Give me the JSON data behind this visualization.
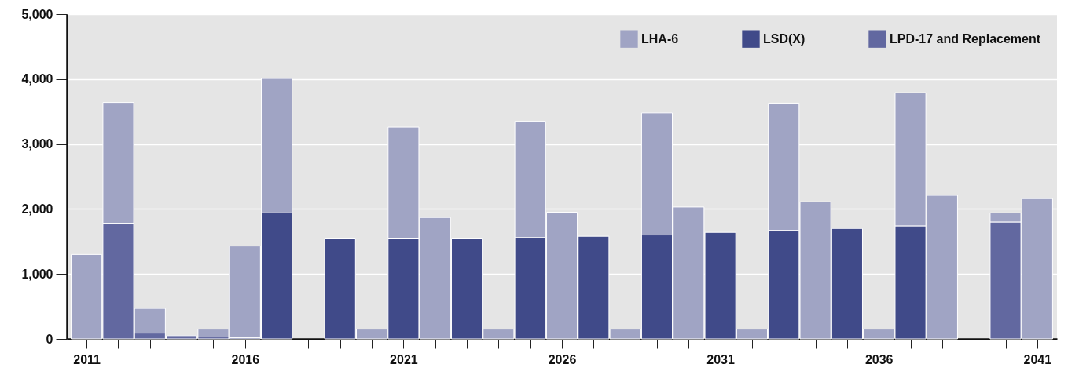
{
  "chart_data": {
    "type": "bar",
    "stacked": true,
    "x": [
      2011,
      2012,
      2013,
      2014,
      2015,
      2016,
      2017,
      2019,
      2020,
      2021,
      2022,
      2023,
      2024,
      2025,
      2026,
      2027,
      2028,
      2029,
      2030,
      2031,
      2032,
      2033,
      2034,
      2035,
      2036,
      2037,
      2038,
      2040,
      2041
    ],
    "series": [
      {
        "name": "LPD-17 and Replacement",
        "color": "#6268a0",
        "values": [
          null,
          1780,
          90,
          50,
          30,
          20,
          null,
          null,
          null,
          null,
          null,
          null,
          null,
          null,
          null,
          null,
          null,
          null,
          null,
          null,
          null,
          null,
          null,
          null,
          null,
          null,
          null,
          1800,
          null
        ]
      },
      {
        "name": "LSD(X)",
        "color": "#404a89",
        "values": [
          null,
          null,
          null,
          null,
          null,
          null,
          1940,
          1540,
          null,
          1540,
          null,
          1540,
          null,
          1560,
          null,
          1580,
          null,
          1600,
          null,
          1640,
          null,
          1670,
          null,
          1700,
          null,
          1740,
          null,
          null,
          null
        ]
      },
      {
        "name": "LHA-6",
        "color": "#a0a4c4",
        "values": [
          1300,
          1860,
          380,
          null,
          120,
          1410,
          2070,
          null,
          150,
          1720,
          1870,
          null,
          150,
          1790,
          1950,
          null,
          150,
          1880,
          2030,
          null,
          150,
          1960,
          2110,
          null,
          150,
          2050,
          2210,
          140,
          2160
        ]
      }
    ],
    "xlim": [
      2010.5,
      2041.5
    ],
    "xticks": [
      2011,
      {
        "value": 2012,
        "label": null
      },
      {
        "value": 2013,
        "label": null
      },
      {
        "value": 2014,
        "label": null
      },
      {
        "value": 2015,
        "label": null
      },
      2016,
      {
        "value": 2017,
        "label": null
      },
      {
        "value": 2018,
        "label": null
      },
      {
        "value": 2019,
        "label": null
      },
      {
        "value": 2020,
        "label": null
      },
      2021,
      {
        "value": 2022,
        "label": null
      },
      {
        "value": 2023,
        "label": null
      },
      {
        "value": 2024,
        "label": null
      },
      {
        "value": 2025,
        "label": null
      },
      2026,
      {
        "value": 2027,
        "label": null
      },
      {
        "value": 2028,
        "label": null
      },
      {
        "value": 2029,
        "label": null
      },
      {
        "value": 2030,
        "label": null
      },
      2031,
      {
        "value": 2032,
        "label": null
      },
      {
        "value": 2033,
        "label": null
      },
      {
        "value": 2034,
        "label": null
      },
      {
        "value": 2035,
        "label": null
      },
      2036,
      {
        "value": 2037,
        "label": null
      },
      {
        "value": 2038,
        "label": null
      },
      {
        "value": 2039,
        "label": null
      },
      {
        "value": 2040,
        "label": null
      },
      2041
    ],
    "ylim": [
      0,
      5000
    ],
    "yticks": [
      0,
      {
        "value": 1000,
        "label": "1,000"
      },
      {
        "value": 2000,
        "label": "2,000"
      },
      {
        "value": 3000,
        "label": "3,000"
      },
      {
        "value": 4000,
        "label": "4,000"
      },
      {
        "value": 5000,
        "label": "5,000"
      }
    ],
    "grid": "y",
    "legend": "top right"
  }
}
